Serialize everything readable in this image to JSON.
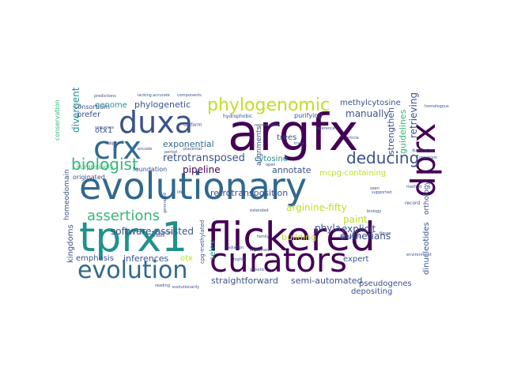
{
  "palette": {
    "dark_purple": "#440154",
    "indigo": "#3b528b",
    "blue": "#31688e",
    "teal": "#21918c",
    "sea_green": "#1f9e89",
    "green": "#35b779",
    "lime": "#90d743",
    "yellow": "#bddf26",
    "bright_yellow": "#dde318"
  },
  "words": [
    {
      "text": "evolutionary",
      "color": "#31688e"
    },
    {
      "text": "argfx",
      "color": "#440154"
    },
    {
      "text": "flickered",
      "color": "#440154"
    },
    {
      "text": "tprx1",
      "color": "#21918c"
    },
    {
      "text": "curators",
      "color": "#440154"
    },
    {
      "text": "duxa",
      "color": "#3b528b"
    },
    {
      "text": "dprx",
      "color": "#440154"
    },
    {
      "text": "evolution",
      "color": "#31688e"
    },
    {
      "text": "crx",
      "color": "#31688e"
    },
    {
      "text": "phylogenomic",
      "color": "#bddf26"
    },
    {
      "text": "biologist",
      "color": "#35b779"
    },
    {
      "text": "assertions",
      "color": "#35b779"
    },
    {
      "text": "deducing",
      "color": "#3b528b"
    },
    {
      "text": "retrotransposed",
      "color": "#3b528b"
    },
    {
      "text": "exponential",
      "color": "#31688e"
    },
    {
      "text": "phylogenetic",
      "color": "#3b528b"
    },
    {
      "text": "retrotransposition",
      "color": "#3b528b"
    },
    {
      "text": "arginine-fifty",
      "color": "#bddf26"
    },
    {
      "text": "software-assisted",
      "color": "#3b528b"
    },
    {
      "text": "annotate",
      "color": "#3b528b"
    },
    {
      "text": "mcpg-containing",
      "color": "#bddf26"
    },
    {
      "text": "pipeline",
      "color": "#440154"
    },
    {
      "text": "methylcytosine",
      "color": "#3b528b"
    },
    {
      "text": "eutherians",
      "color": "#3b528b"
    },
    {
      "text": "cytosine",
      "color": "#21918c"
    },
    {
      "text": "genome",
      "color": "#21918c"
    },
    {
      "text": "manually",
      "color": "#3b528b"
    },
    {
      "text": "explicit",
      "color": "#3b528b"
    },
    {
      "text": "paint",
      "color": "#bddf26"
    },
    {
      "text": "phyla",
      "color": "#3b528b"
    },
    {
      "text": "building",
      "color": "#bddf26"
    },
    {
      "text": "expert",
      "color": "#3b528b"
    },
    {
      "text": "inferences",
      "color": "#3b528b"
    },
    {
      "text": "straightforward",
      "color": "#3b528b"
    },
    {
      "text": "semi-automated",
      "color": "#3b528b"
    },
    {
      "text": "pseudogenes",
      "color": "#3b528b"
    },
    {
      "text": "depositing",
      "color": "#3b528b"
    },
    {
      "text": "trees",
      "color": "#3b528b"
    },
    {
      "text": "alignments",
      "color": "#3b528b"
    },
    {
      "text": "retrieving",
      "color": "#3b528b"
    },
    {
      "text": "guidelines",
      "color": "#35b779"
    },
    {
      "text": "strengthen",
      "color": "#3b528b"
    },
    {
      "text": "dinucleotides",
      "color": "#3b528b"
    },
    {
      "text": "orthology",
      "color": "#3b528b"
    },
    {
      "text": "kingdoms",
      "color": "#3b528b"
    },
    {
      "text": "homeodomain",
      "color": "#3b528b"
    },
    {
      "text": "divergent",
      "color": "#21918c"
    },
    {
      "text": "otx1",
      "color": "#3b528b"
    },
    {
      "text": "prefer",
      "color": "#3b528b"
    },
    {
      "text": "consortium",
      "color": "#3b528b"
    },
    {
      "text": "conservation",
      "color": "#35b779"
    },
    {
      "text": "surprisingly",
      "color": "#35b779"
    },
    {
      "text": "foundation",
      "color": "#3b528b"
    },
    {
      "text": "originated",
      "color": "#3b528b"
    },
    {
      "text": "emphasis",
      "color": "#3b528b"
    },
    {
      "text": "selex",
      "color": "#21918c"
    },
    {
      "text": "otx",
      "color": "#bddf26"
    },
    {
      "text": "purifying",
      "color": "#3b528b"
    },
    {
      "text": "cpg-methylated",
      "color": "#3b528b"
    },
    {
      "text": "hydrophobic",
      "color": "#3b528b"
    },
    {
      "text": "record",
      "color": "#3b528b"
    },
    {
      "text": "figure",
      "color": "#3b528b"
    },
    {
      "text": "reliable",
      "color": "#3b528b"
    },
    {
      "text": "uniform",
      "color": "#3b528b"
    },
    {
      "text": "radiation",
      "color": "#3b528b"
    },
    {
      "text": "extended",
      "color": "#3b528b"
    },
    {
      "text": "family",
      "color": "#3b528b"
    },
    {
      "text": "highly",
      "color": "#3b528b"
    },
    {
      "text": "biology",
      "color": "#3b528b"
    },
    {
      "text": "duplication",
      "color": "#3b528b"
    },
    {
      "text": "organism",
      "color": "#3b528b"
    },
    {
      "text": "reference",
      "color": "#3b528b"
    },
    {
      "text": "article",
      "color": "#3b528b"
    },
    {
      "text": "reading",
      "color": "#3b528b"
    },
    {
      "text": "evolutionarily",
      "color": "#3b528b"
    },
    {
      "text": "limitations",
      "color": "#3b528b"
    },
    {
      "text": "generated",
      "color": "#3b528b"
    },
    {
      "text": "subject",
      "color": "#3b528b"
    },
    {
      "text": "placental",
      "color": "#3b528b"
    },
    {
      "text": "accurate",
      "color": "#3b528b"
    },
    {
      "text": "lacking",
      "color": "#3b528b"
    },
    {
      "text": "components",
      "color": "#3b528b"
    },
    {
      "text": "predictions",
      "color": "#3b528b"
    },
    {
      "text": "homologous",
      "color": "#3b528b"
    },
    {
      "text": "environment",
      "color": "#3b528b"
    },
    {
      "text": "supported",
      "color": "#3b528b"
    },
    {
      "text": "method",
      "color": "#3b528b"
    },
    {
      "text": "explained",
      "color": "#3b528b"
    },
    {
      "text": "period",
      "color": "#3b528b"
    },
    {
      "text": "genetic",
      "color": "#3b528b"
    },
    {
      "text": "reproductive",
      "color": "#3b528b"
    },
    {
      "text": "life",
      "color": "#3b528b"
    },
    {
      "text": "open",
      "color": "#3b528b"
    },
    {
      "text": "sequence",
      "color": "#3b528b"
    },
    {
      "text": "encode",
      "color": "#3b528b"
    },
    {
      "text": "species",
      "color": "#3b528b"
    },
    {
      "text": "seen",
      "color": "#3b528b"
    },
    {
      "text": "trace",
      "color": "#3b528b"
    }
  ]
}
